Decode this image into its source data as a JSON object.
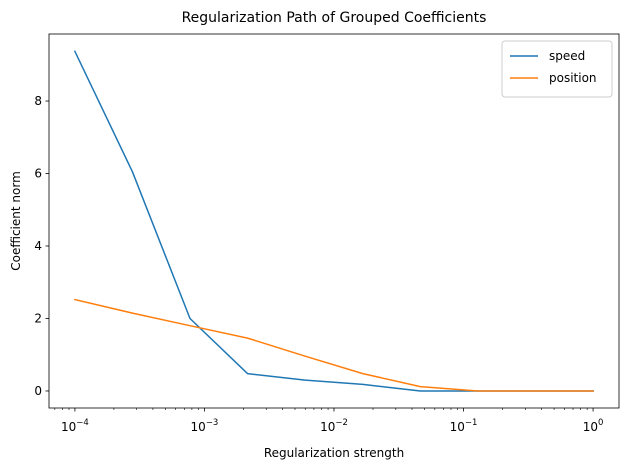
{
  "chart_data": {
    "type": "line",
    "title": "Regularization Path of Grouped Coefficients",
    "xlabel": "Regularization strength",
    "ylabel": "Coefficient norm",
    "xscale": "log",
    "xlim": [
      6.31e-05,
      1.585
    ],
    "ylim": [
      -0.47,
      9.85
    ],
    "grid": false,
    "legend_position": "top-right",
    "x_ticks": [
      {
        "value": 0.0001,
        "base": "10",
        "exp": "−4"
      },
      {
        "value": 0.001,
        "base": "10",
        "exp": "−3"
      },
      {
        "value": 0.01,
        "base": "10",
        "exp": "−2"
      },
      {
        "value": 0.1,
        "base": "10",
        "exp": "−1"
      },
      {
        "value": 1,
        "base": "10",
        "exp": "0"
      }
    ],
    "y_ticks": [
      {
        "value": 0,
        "label": "0"
      },
      {
        "value": 2,
        "label": "2"
      },
      {
        "value": 4,
        "label": "4"
      },
      {
        "value": 6,
        "label": "6"
      },
      {
        "value": 8,
        "label": "8"
      }
    ],
    "x": [
      0.0001,
      0.000278,
      0.000774,
      0.00215,
      0.00599,
      0.0167,
      0.0464,
      0.129,
      0.359,
      1.0
    ],
    "series": [
      {
        "name": "speed",
        "color": "#1f77b4",
        "values": [
          9.37,
          6.05,
          2.0,
          0.48,
          0.3,
          0.18,
          0.0,
          0.0,
          0.0,
          0.0
        ]
      },
      {
        "name": "position",
        "color": "#ff7f0e",
        "values": [
          2.52,
          2.15,
          1.8,
          1.46,
          0.96,
          0.48,
          0.12,
          0.0,
          0.0,
          0.0
        ]
      }
    ]
  }
}
